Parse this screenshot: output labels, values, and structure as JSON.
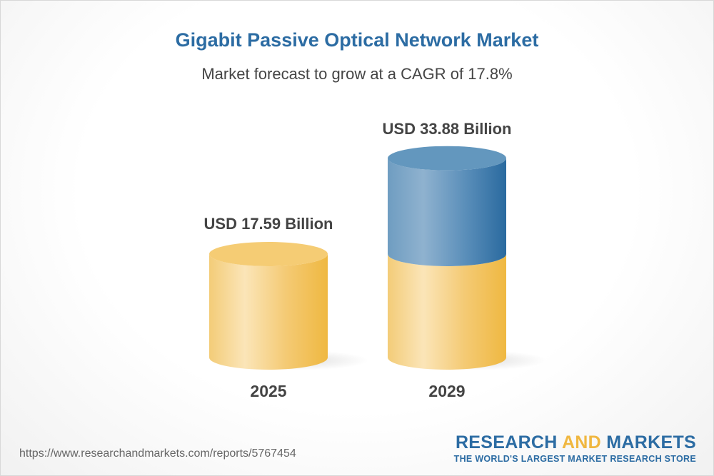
{
  "title": "Gigabit Passive Optical Network Market",
  "subtitle": "Market forecast to grow at a CAGR of 17.8%",
  "chart_data": {
    "type": "bar",
    "style": "3d-cylinder",
    "categories": [
      "2025",
      "2029"
    ],
    "values": [
      17.59,
      33.88
    ],
    "data_labels": [
      "USD 17.59 Billion",
      "USD 33.88 Billion"
    ],
    "unit": "USD Billion",
    "cagr": "17.8%",
    "colors": {
      "base": "#f0b944",
      "growth": "#2c6ca3"
    }
  },
  "footer": {
    "url": "https://www.researchandmarkets.com/reports/5767454",
    "logo_part1": "RESEARCH ",
    "logo_part2": "AND",
    "logo_part3": " MARKETS",
    "logo_tagline": "THE WORLD'S LARGEST MARKET RESEARCH STORE"
  }
}
